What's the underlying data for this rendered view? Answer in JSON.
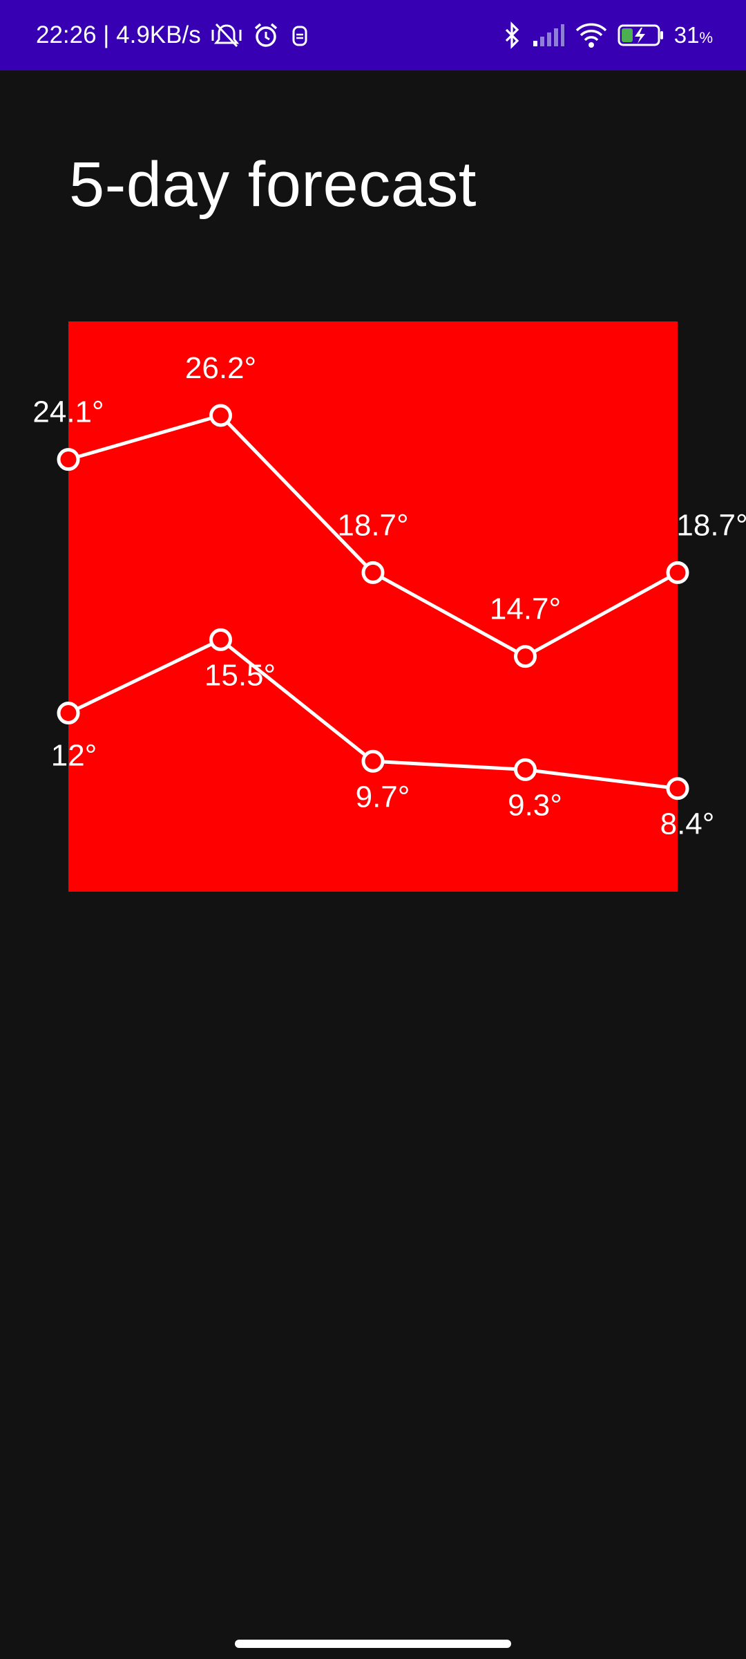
{
  "status_bar": {
    "time_speed": "22:26 | 4.9KB/s",
    "battery": "31",
    "battery_unit": "%",
    "icons": [
      "mute-vibrate-icon",
      "alarm-icon",
      "app-notification-icon",
      "bluetooth-icon",
      "cellular-signal-icon",
      "wifi-icon",
      "battery-charging-icon"
    ]
  },
  "page": {
    "title": "5-day forecast"
  },
  "colors": {
    "status_bar": "#3700b3",
    "background": "#121212",
    "chart_background": "#ff0000",
    "line": "#ffffff"
  },
  "chart_data": {
    "type": "line",
    "x": [
      1,
      2,
      3,
      4,
      5
    ],
    "series": [
      {
        "values": [
          24.1,
          26.2,
          18.7,
          14.7,
          18.7
        ],
        "labels": [
          "24.1°",
          "26.2°",
          "18.7°",
          "14.7°",
          "18.7°"
        ]
      },
      {
        "values": [
          12,
          15.5,
          9.7,
          9.3,
          8.4
        ],
        "labels": [
          "12°",
          "15.5°",
          "9.7°",
          "9.3°",
          "8.4°"
        ]
      }
    ],
    "grid": false,
    "legend": "none"
  }
}
